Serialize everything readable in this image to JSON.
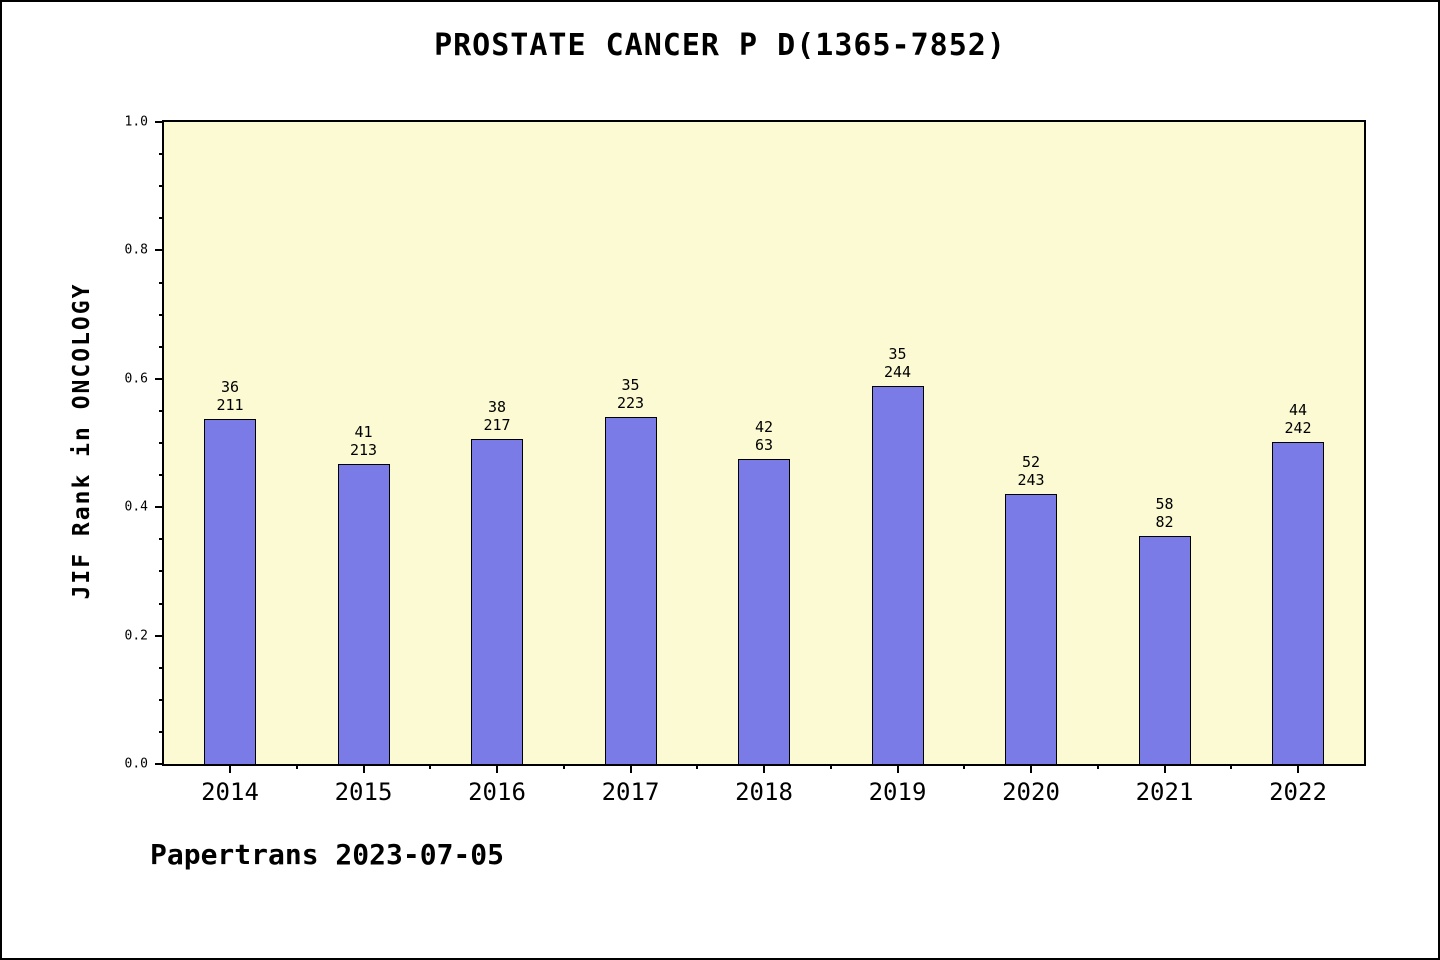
{
  "title": "PROSTATE CANCER P D(1365-7852)",
  "footer": "Papertrans 2023-07-05",
  "colors": {
    "bar_fill": "#7b7be8",
    "bar_edge": "#000000",
    "plot_bg": "#fbfad2",
    "page_bg": "#ffffff"
  },
  "chart_data": {
    "type": "bar",
    "title": "PROSTATE CANCER P D(1365-7852)",
    "xlabel": "",
    "ylabel": "JIF Rank in ONCOLOGY",
    "ylim": [
      0,
      1
    ],
    "yticks": [
      0,
      0.2,
      0.4,
      0.6,
      0.8,
      1
    ],
    "grid": false,
    "categories": [
      "2014",
      "2015",
      "2016",
      "2017",
      "2018",
      "2019",
      "2020",
      "2021",
      "2022"
    ],
    "values": [
      0.538,
      0.468,
      0.507,
      0.54,
      0.475,
      0.589,
      0.421,
      0.355,
      0.501
    ],
    "bar_labels": [
      [
        "36",
        "211"
      ],
      [
        "41",
        "213"
      ],
      [
        "38",
        "217"
      ],
      [
        "35",
        "223"
      ],
      [
        "42",
        "63"
      ],
      [
        "35",
        "244"
      ],
      [
        "52",
        "243"
      ],
      [
        "58",
        "82"
      ],
      [
        "44",
        "242"
      ]
    ]
  }
}
